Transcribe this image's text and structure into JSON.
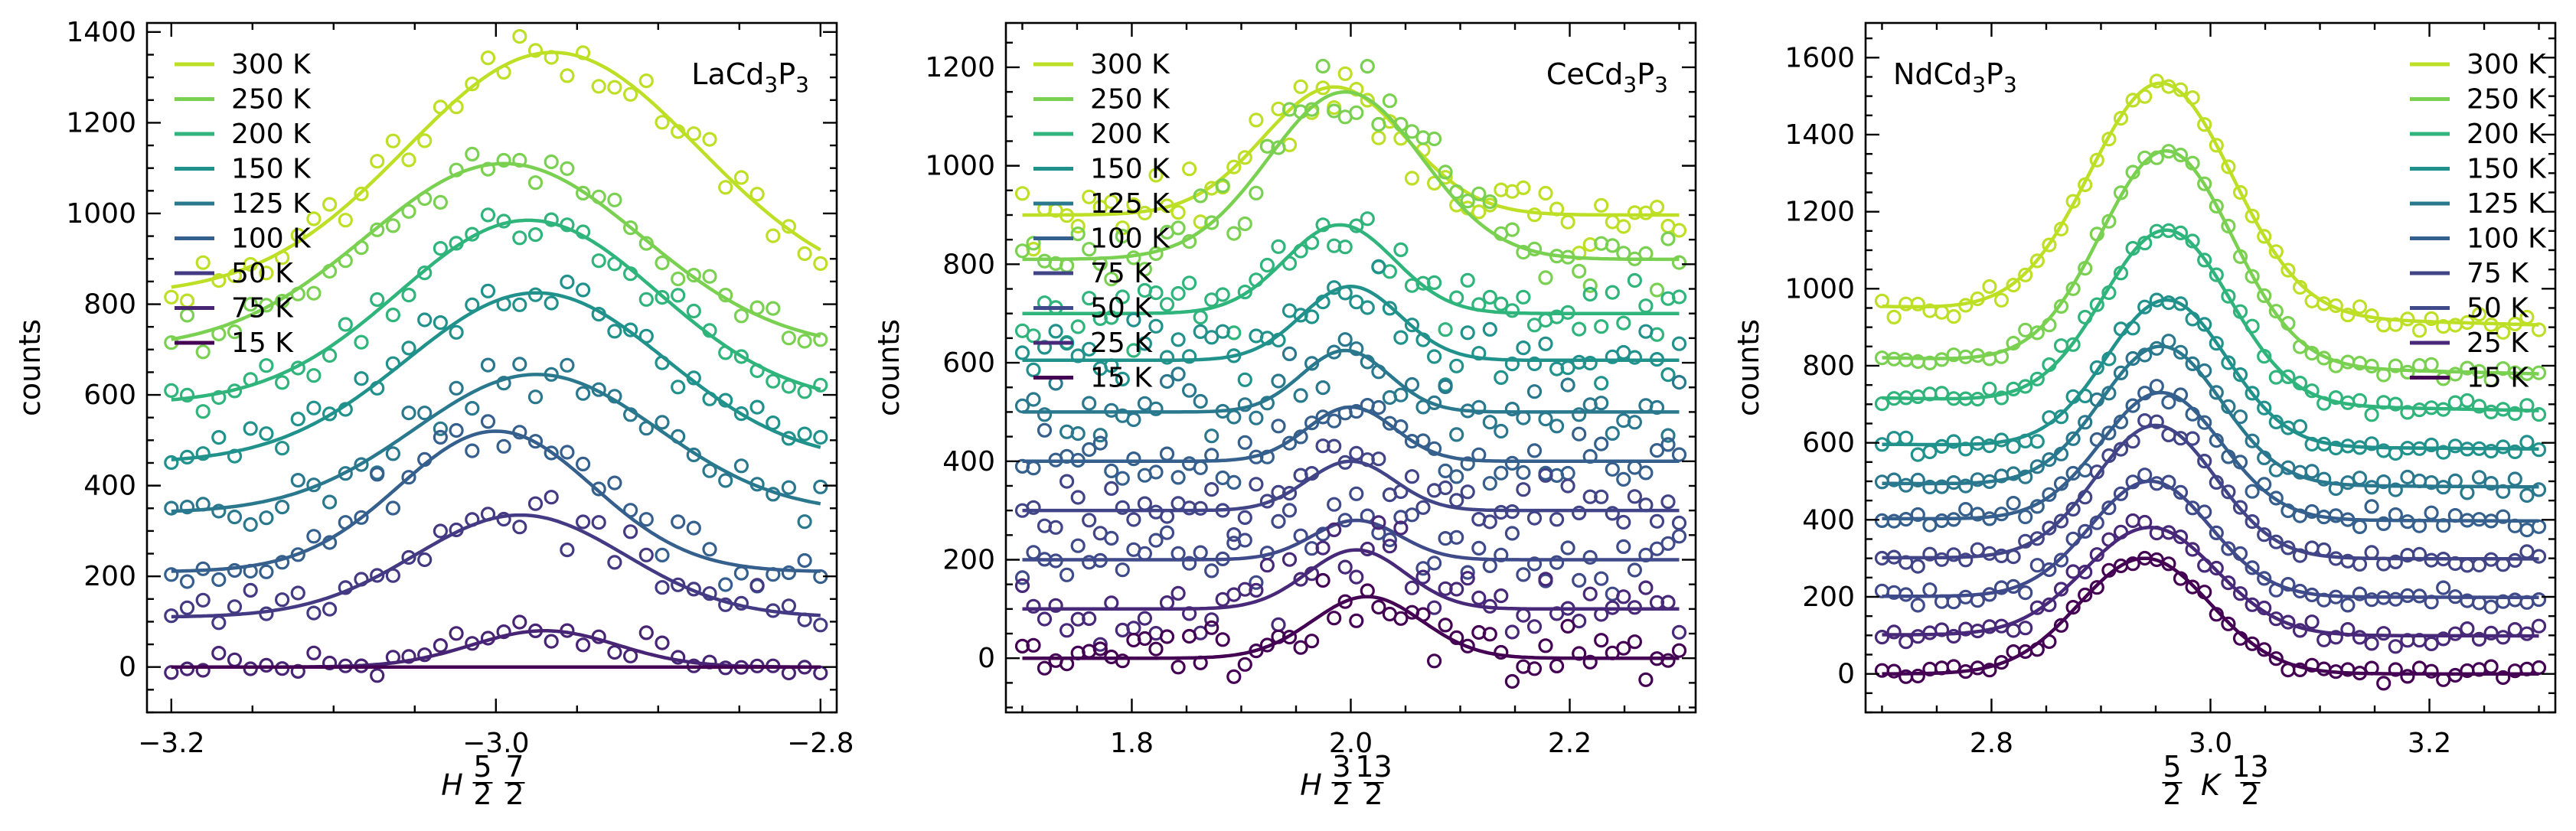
{
  "figure": {
    "layout": "three panels, shared y-axis label 'counts'"
  },
  "chart_data": [
    {
      "type": "scatter",
      "panel": "left",
      "title": "LaCd3P3",
      "title_parts": {
        "base": "LaCd",
        "sub1": "3",
        "mid": "P",
        "sub2": "3"
      },
      "xlabel": "H 5/2 7/2",
      "xlabel_parts": {
        "var": "H",
        "frac1_num": "5",
        "frac1_den": "2",
        "frac2_num": "7",
        "frac2_den": "2"
      },
      "ylabel": "counts",
      "xlim": [
        -3.215,
        -2.79
      ],
      "ylim": [
        -100,
        1420
      ],
      "xticks": [
        -3.2,
        -3.0,
        -2.8
      ],
      "xtick_labels": [
        "−3.2",
        "−3.0",
        "−2.8"
      ],
      "yticks": [
        0,
        200,
        400,
        600,
        800,
        1000,
        1200,
        1400
      ],
      "ytick_labels": [
        "0",
        "200",
        "400",
        "600",
        "800",
        "1000",
        "1200",
        "1400"
      ],
      "legend_position": "top-left",
      "fit_model": "gaussian on constant offset",
      "series": [
        {
          "name": "300 K",
          "color": "#bddf26",
          "offset": 820,
          "amp": 535,
          "center": -2.965,
          "sigma": 0.09,
          "xmin": -3.2,
          "xmax": -2.8,
          "n": 42,
          "noise": 25,
          "seed": 11
        },
        {
          "name": "250 K",
          "color": "#7ad151",
          "offset": 700,
          "amp": 410,
          "center": -2.995,
          "sigma": 0.085,
          "xmin": -3.2,
          "xmax": -2.8,
          "n": 42,
          "noise": 22,
          "seed": 12
        },
        {
          "name": "200 K",
          "color": "#2fb47c",
          "offset": 580,
          "amp": 405,
          "center": -2.98,
          "sigma": 0.08,
          "xmin": -3.2,
          "xmax": -2.8,
          "n": 42,
          "noise": 22,
          "seed": 13
        },
        {
          "name": "150 K",
          "color": "#21918c",
          "offset": 450,
          "amp": 375,
          "center": -2.975,
          "sigma": 0.08,
          "xmin": -3.2,
          "xmax": -2.8,
          "n": 42,
          "noise": 22,
          "seed": 14
        },
        {
          "name": "125 K",
          "color": "#2a788e",
          "offset": 340,
          "amp": 305,
          "center": -2.975,
          "sigma": 0.075,
          "xmin": -3.2,
          "xmax": -2.8,
          "n": 42,
          "noise": 25,
          "seed": 15
        },
        {
          "name": "100 K",
          "color": "#355f8d",
          "offset": 210,
          "amp": 310,
          "center": -3.0,
          "sigma": 0.06,
          "xmin": -3.2,
          "xmax": -2.8,
          "n": 42,
          "noise": 28,
          "seed": 16
        },
        {
          "name": "50 K",
          "color": "#443983",
          "offset": 110,
          "amp": 225,
          "center": -2.985,
          "sigma": 0.065,
          "xmin": -3.2,
          "xmax": -2.8,
          "n": 42,
          "noise": 25,
          "seed": 17
        },
        {
          "name": "75 K",
          "color": "#482475",
          "offset": 0,
          "amp": 80,
          "center": -2.97,
          "sigma": 0.045,
          "xmin": -3.2,
          "xmax": -2.8,
          "n": 42,
          "noise": 18,
          "seed": 18
        },
        {
          "name": "15 K",
          "color": "#440154",
          "offset": 0,
          "amp": 0,
          "center": -2.97,
          "sigma": 0.05,
          "xmin": -3.2,
          "xmax": -2.8,
          "n": 0,
          "noise": 0,
          "seed": 19
        }
      ]
    },
    {
      "type": "scatter",
      "panel": "middle",
      "title": "CeCd3P3",
      "title_parts": {
        "base": "CeCd",
        "sub1": "3",
        "mid": "P",
        "sub2": "3"
      },
      "xlabel": "H 3/2 13/2",
      "xlabel_parts": {
        "var": "H",
        "frac1_num": "3",
        "frac1_den": "2",
        "frac2_num": "13",
        "frac2_den": "2"
      },
      "ylabel": "counts",
      "xlim": [
        1.685,
        2.315
      ],
      "ylim": [
        -110,
        1290
      ],
      "xticks": [
        1.8,
        2.0,
        2.2
      ],
      "xtick_labels": [
        "1.8",
        "2.0",
        "2.2"
      ],
      "yticks": [
        0,
        200,
        400,
        600,
        800,
        1000,
        1200
      ],
      "ytick_labels": [
        "0",
        "200",
        "400",
        "600",
        "800",
        "1000",
        "1200"
      ],
      "legend_position": "top-left",
      "fit_model": "gaussian on constant offset",
      "series": [
        {
          "name": "300 K",
          "color": "#bddf26",
          "offset": 900,
          "amp": 260,
          "center": 1.985,
          "sigma": 0.065,
          "xmin": 1.7,
          "xmax": 2.3,
          "n": 60,
          "noise": 35,
          "seed": 21
        },
        {
          "name": "250 K",
          "color": "#7ad151",
          "offset": 810,
          "amp": 340,
          "center": 1.995,
          "sigma": 0.07,
          "xmin": 1.7,
          "xmax": 2.3,
          "n": 60,
          "noise": 35,
          "seed": 22
        },
        {
          "name": "200 K",
          "color": "#2fb47c",
          "offset": 700,
          "amp": 180,
          "center": 1.99,
          "sigma": 0.05,
          "xmin": 1.7,
          "xmax": 2.3,
          "n": 60,
          "noise": 30,
          "seed": 23
        },
        {
          "name": "150 K",
          "color": "#21918c",
          "offset": 605,
          "amp": 150,
          "center": 2.0,
          "sigma": 0.045,
          "xmin": 1.7,
          "xmax": 2.3,
          "n": 60,
          "noise": 30,
          "seed": 24
        },
        {
          "name": "125 K",
          "color": "#2a788e",
          "offset": 500,
          "amp": 125,
          "center": 1.995,
          "sigma": 0.04,
          "xmin": 1.7,
          "xmax": 2.3,
          "n": 60,
          "noise": 30,
          "seed": 25
        },
        {
          "name": "100 K",
          "color": "#355f8d",
          "offset": 400,
          "amp": 110,
          "center": 2.0,
          "sigma": 0.04,
          "xmin": 1.7,
          "xmax": 2.3,
          "n": 60,
          "noise": 30,
          "seed": 26
        },
        {
          "name": "75 K",
          "color": "#414487",
          "offset": 300,
          "amp": 100,
          "center": 2.0,
          "sigma": 0.04,
          "xmin": 1.7,
          "xmax": 2.3,
          "n": 60,
          "noise": 30,
          "seed": 27
        },
        {
          "name": "50 K",
          "color": "#3e4a89",
          "offset": 200,
          "amp": 80,
          "center": 2.005,
          "sigma": 0.04,
          "xmin": 1.7,
          "xmax": 2.3,
          "n": 60,
          "noise": 30,
          "seed": 28
        },
        {
          "name": "25 K",
          "color": "#482878",
          "offset": 100,
          "amp": 120,
          "center": 2.005,
          "sigma": 0.045,
          "xmin": 1.7,
          "xmax": 2.3,
          "n": 60,
          "noise": 30,
          "seed": 29
        },
        {
          "name": "15 K",
          "color": "#440154",
          "offset": 0,
          "amp": 125,
          "center": 2.015,
          "sigma": 0.05,
          "xmin": 1.7,
          "xmax": 2.3,
          "n": 60,
          "noise": 30,
          "seed": 30
        }
      ]
    },
    {
      "type": "scatter",
      "panel": "right",
      "title": "NdCd3P3",
      "title_parts": {
        "base": "NdCd",
        "sub1": "3",
        "mid": "P",
        "sub2": "3"
      },
      "xlabel": "5/2 K 13/2",
      "xlabel_parts": {
        "var": "K",
        "frac1_num": "5",
        "frac1_den": "2",
        "frac2_num": "13",
        "frac2_den": "2"
      },
      "ylabel": "counts",
      "xlim": [
        2.685,
        3.315
      ],
      "ylim": [
        -100,
        1690
      ],
      "xticks": [
        2.8,
        3.0,
        3.2
      ],
      "xtick_labels": [
        "2.8",
        "3.0",
        "3.2"
      ],
      "yticks": [
        0,
        200,
        400,
        600,
        800,
        1000,
        1200,
        1400,
        1600
      ],
      "ytick_labels": [
        "0",
        "200",
        "400",
        "600",
        "800",
        "1000",
        "1200",
        "1400",
        "1600"
      ],
      "legend_position": "top-right",
      "fit_model": "gaussian on linear background",
      "series": [
        {
          "name": "300 K",
          "color": "#bddf26",
          "offset": 930,
          "slope": -80,
          "amp": 600,
          "center": 2.955,
          "sigma": 0.065,
          "xmin": 2.7,
          "xmax": 3.3,
          "n": 56,
          "noise": 12,
          "seed": 31
        },
        {
          "name": "250 K",
          "color": "#7ad151",
          "offset": 800,
          "slope": -70,
          "amp": 555,
          "center": 2.96,
          "sigma": 0.06,
          "xmin": 2.7,
          "xmax": 3.3,
          "n": 56,
          "noise": 12,
          "seed": 32
        },
        {
          "name": "200 K",
          "color": "#2fb47c",
          "offset": 700,
          "slope": -55,
          "amp": 450,
          "center": 2.96,
          "sigma": 0.058,
          "xmin": 2.7,
          "xmax": 3.3,
          "n": 56,
          "noise": 12,
          "seed": 33
        },
        {
          "name": "150 K",
          "color": "#21918c",
          "offset": 590,
          "slope": -20,
          "amp": 380,
          "center": 2.96,
          "sigma": 0.055,
          "xmin": 2.7,
          "xmax": 3.3,
          "n": 56,
          "noise": 12,
          "seed": 34
        },
        {
          "name": "125 K",
          "color": "#2a788e",
          "offset": 490,
          "slope": -15,
          "amp": 360,
          "center": 2.955,
          "sigma": 0.055,
          "xmin": 2.7,
          "xmax": 3.3,
          "n": 56,
          "noise": 12,
          "seed": 35
        },
        {
          "name": "100 K",
          "color": "#355f8d",
          "offset": 400,
          "slope": -10,
          "amp": 330,
          "center": 2.955,
          "sigma": 0.055,
          "xmin": 2.7,
          "xmax": 3.3,
          "n": 56,
          "noise": 12,
          "seed": 36
        },
        {
          "name": "75 K",
          "color": "#414487",
          "offset": 300,
          "slope": -5,
          "amp": 345,
          "center": 2.95,
          "sigma": 0.055,
          "xmin": 2.7,
          "xmax": 3.3,
          "n": 56,
          "noise": 12,
          "seed": 37
        },
        {
          "name": "50 K",
          "color": "#3e4a89",
          "offset": 200,
          "slope": -5,
          "amp": 300,
          "center": 2.945,
          "sigma": 0.055,
          "xmin": 2.7,
          "xmax": 3.3,
          "n": 56,
          "noise": 12,
          "seed": 38
        },
        {
          "name": "25 K",
          "color": "#482878",
          "offset": 100,
          "slope": -5,
          "amp": 280,
          "center": 2.945,
          "sigma": 0.06,
          "xmin": 2.7,
          "xmax": 3.3,
          "n": 56,
          "noise": 12,
          "seed": 39
        },
        {
          "name": "15 K",
          "color": "#440154",
          "offset": 0,
          "slope": 0,
          "amp": 300,
          "center": 2.94,
          "sigma": 0.06,
          "xmin": 2.7,
          "xmax": 3.3,
          "n": 56,
          "noise": 12,
          "seed": 40
        }
      ]
    }
  ]
}
